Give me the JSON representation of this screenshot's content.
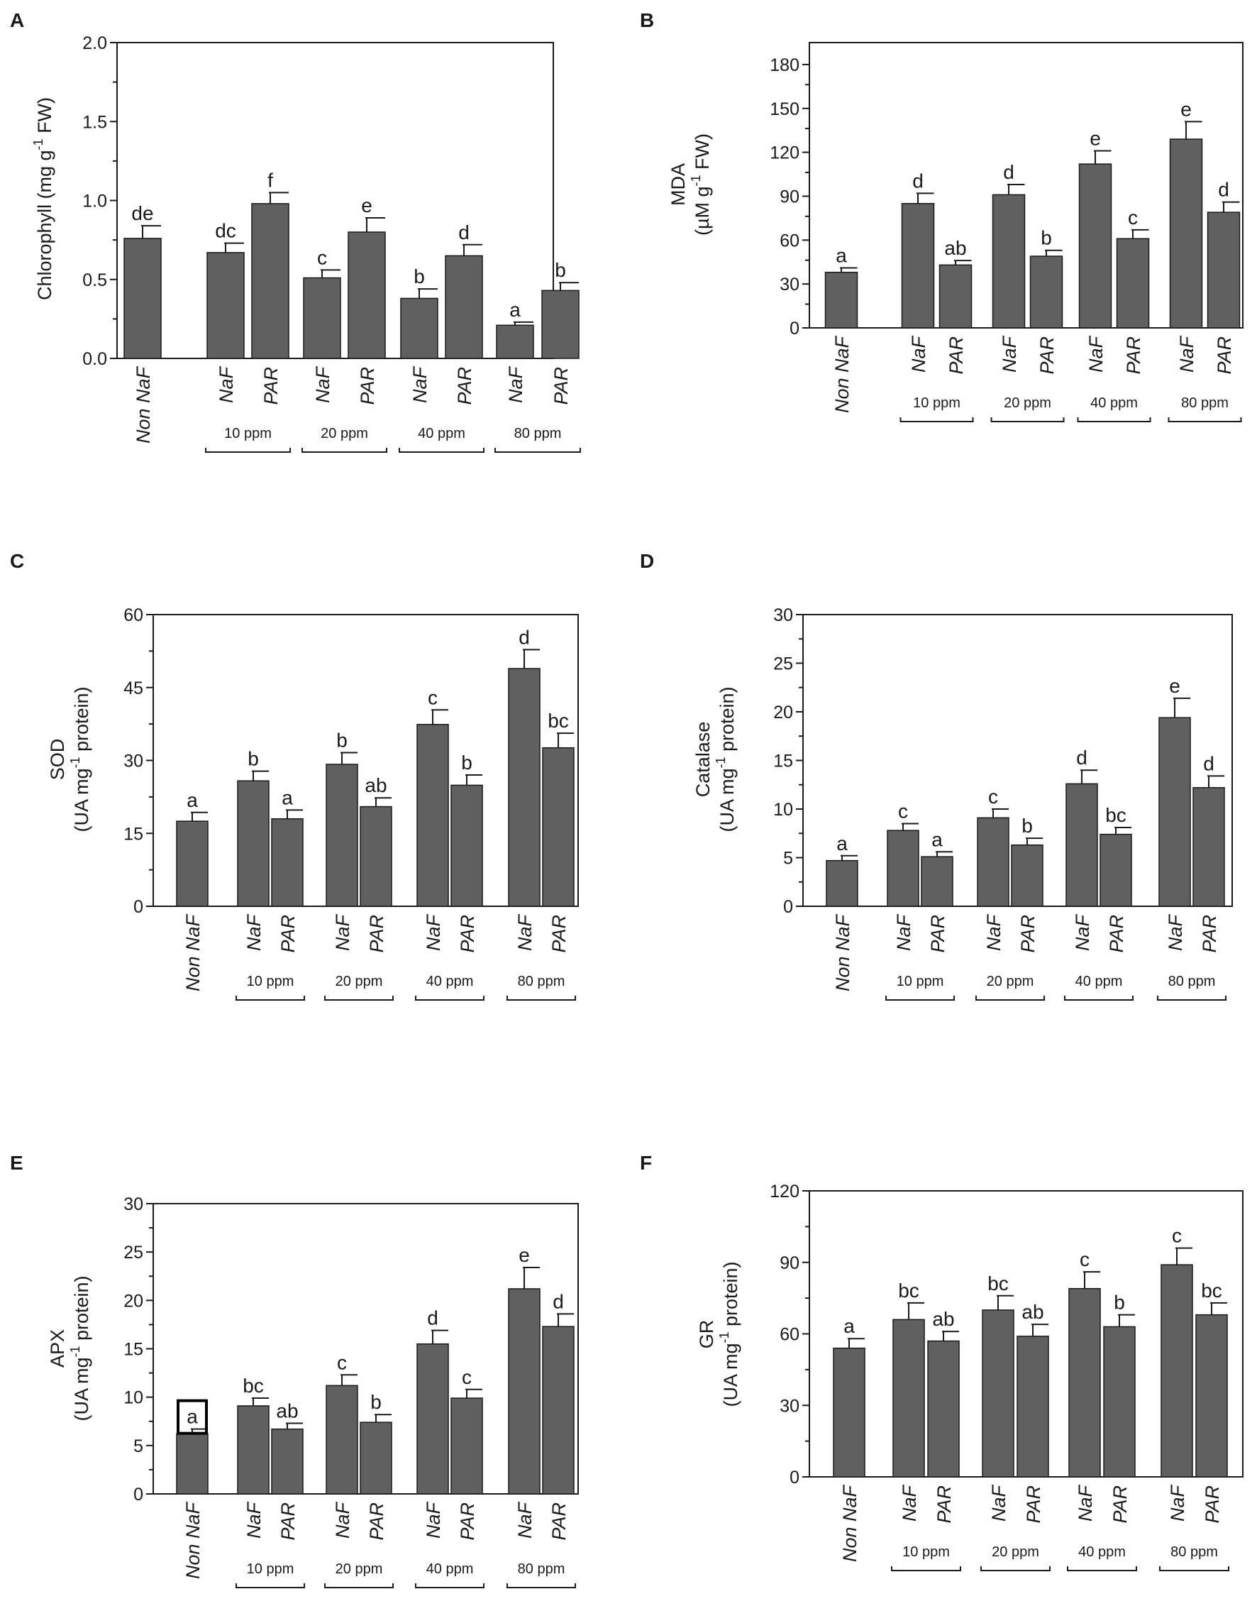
{
  "colors": {
    "bar_fill": "#606060",
    "bar_stroke": "#1a1a1a",
    "axis": "#1a1a1a",
    "highlight_box": "#000000"
  },
  "figure": {
    "non_label": "Non NaF",
    "naf_label": "NaF",
    "par_label": "PAR",
    "dose_labels": [
      "10 ppm",
      "20 ppm",
      "40 ppm",
      "80 ppm"
    ]
  },
  "chart_data": [
    {
      "id": "A",
      "type": "bar",
      "panel_label": "A",
      "ylabel_lines": [
        "Chlorophyll (mg g",
        "-1",
        " FW)"
      ],
      "ylim": [
        0,
        2.0
      ],
      "yticks": [
        0.0,
        0.5,
        1.0,
        1.5,
        2.0
      ],
      "ytick_labels": [
        "0.0",
        "0.5",
        "1.0",
        "1.5",
        "2.0"
      ],
      "categories": [
        "Non NaF",
        "NaF 10 ppm",
        "PAR 10 ppm",
        "NaF 20 ppm",
        "PAR 20 ppm",
        "NaF 40 ppm",
        "PAR 40 ppm",
        "NaF 80 ppm",
        "PAR 80 ppm"
      ],
      "values": [
        0.76,
        0.67,
        0.98,
        0.51,
        0.8,
        0.38,
        0.65,
        0.21,
        0.43
      ],
      "errors": [
        0.08,
        0.06,
        0.07,
        0.05,
        0.09,
        0.06,
        0.07,
        0.02,
        0.05
      ],
      "significance": [
        "de",
        "dc",
        "f",
        "c",
        "e",
        "b",
        "d",
        "a",
        "b"
      ]
    },
    {
      "id": "B",
      "type": "bar",
      "panel_label": "B",
      "ylabel_lines": [
        "MDA",
        "(µM g",
        "-1",
        " FW)"
      ],
      "ylim": [
        0,
        195
      ],
      "yticks": [
        0,
        30,
        60,
        90,
        120,
        150,
        180
      ],
      "ytick_labels": [
        "0",
        "30",
        "60",
        "90",
        "120",
        "150",
        "180"
      ],
      "categories": [
        "Non NaF",
        "NaF 10 ppm",
        "PAR 10 ppm",
        "NaF 20 ppm",
        "PAR 20 ppm",
        "NaF 40 ppm",
        "PAR 40 ppm",
        "NaF 80 ppm",
        "PAR 80 ppm"
      ],
      "values": [
        38,
        85,
        43,
        91,
        49,
        112,
        61,
        129,
        79
      ],
      "errors": [
        3,
        7,
        3,
        7,
        4,
        9,
        6,
        12,
        7
      ],
      "significance": [
        "a",
        "d",
        "ab",
        "d",
        "b",
        "e",
        "c",
        "e",
        "d"
      ]
    },
    {
      "id": "C",
      "type": "bar",
      "panel_label": "C",
      "ylabel_lines": [
        "SOD",
        "(UA mg",
        "-1",
        " protein)"
      ],
      "ylim": [
        0,
        60
      ],
      "yticks": [
        0,
        15,
        30,
        45,
        60
      ],
      "ytick_labels": [
        "0",
        "15",
        "30",
        "45",
        "60"
      ],
      "categories": [
        "Non NaF",
        "NaF 10 ppm",
        "PAR 10 ppm",
        "NaF 20 ppm",
        "PAR 20 ppm",
        "NaF 40 ppm",
        "PAR 40 ppm",
        "NaF 80 ppm",
        "PAR 80 ppm"
      ],
      "values": [
        17.5,
        25.8,
        18.0,
        29.2,
        20.5,
        37.4,
        24.9,
        48.9,
        32.6
      ],
      "errors": [
        1.8,
        2.0,
        1.8,
        2.4,
        1.8,
        3.0,
        2.1,
        3.9,
        3.0
      ],
      "significance": [
        "a",
        "b",
        "a",
        "b",
        "ab",
        "c",
        "b",
        "d",
        "bc"
      ]
    },
    {
      "id": "D",
      "type": "bar",
      "panel_label": "D",
      "ylabel_lines": [
        "Catalase",
        "(UA mg",
        "-1",
        " protein)"
      ],
      "ylim": [
        0,
        30
      ],
      "yticks": [
        0,
        5,
        10,
        15,
        20,
        25,
        30
      ],
      "ytick_labels": [
        "0",
        "5",
        "10",
        "15",
        "20",
        "25",
        "30"
      ],
      "categories": [
        "Non NaF",
        "NaF 10 ppm",
        "PAR 10 ppm",
        "NaF 20 ppm",
        "PAR 20 ppm",
        "NaF 40 ppm",
        "PAR 40 ppm",
        "NaF 80 ppm",
        "PAR 80 ppm"
      ],
      "values": [
        4.7,
        7.8,
        5.1,
        9.1,
        6.3,
        12.6,
        7.4,
        19.4,
        12.2
      ],
      "errors": [
        0.5,
        0.7,
        0.5,
        0.9,
        0.7,
        1.4,
        0.7,
        2.0,
        1.2
      ],
      "significance": [
        "a",
        "c",
        "a",
        "c",
        "b",
        "d",
        "bc",
        "e",
        "d"
      ]
    },
    {
      "id": "E",
      "type": "bar",
      "panel_label": "E",
      "ylabel_lines": [
        "APX",
        "(UA mg",
        "-1",
        " protein)"
      ],
      "ylim": [
        0,
        30
      ],
      "yticks": [
        0,
        5,
        10,
        15,
        20,
        25,
        30
      ],
      "ytick_labels": [
        "0",
        "5",
        "10",
        "15",
        "20",
        "25",
        "30"
      ],
      "categories": [
        "Non NaF",
        "NaF 10 ppm",
        "PAR 10 ppm",
        "NaF 20 ppm",
        "PAR 20 ppm",
        "NaF 40 ppm",
        "PAR 40 ppm",
        "NaF 80 ppm",
        "PAR 80 ppm"
      ],
      "values": [
        6.2,
        9.1,
        6.7,
        11.2,
        7.4,
        15.5,
        9.9,
        21.2,
        17.3
      ],
      "errors": [
        0.5,
        0.8,
        0.6,
        1.1,
        0.8,
        1.4,
        0.9,
        2.2,
        1.3
      ],
      "significance": [
        "a",
        "bc",
        "ab",
        "c",
        "b",
        "d",
        "c",
        "e",
        "d"
      ],
      "highlighted_index": 0
    },
    {
      "id": "F",
      "type": "bar",
      "panel_label": "F",
      "ylabel_lines": [
        "GR",
        "(UA mg",
        "-1",
        " protein)"
      ],
      "ylim": [
        0,
        120
      ],
      "yticks": [
        0,
        30,
        60,
        90,
        120
      ],
      "ytick_labels": [
        "0",
        "30",
        "60",
        "90",
        "120"
      ],
      "categories": [
        "Non NaF",
        "NaF 10 ppm",
        "PAR 10 ppm",
        "NaF 20 ppm",
        "PAR 20 ppm",
        "NaF 40 ppm",
        "PAR 40 ppm",
        "NaF 80 ppm",
        "PAR 80 ppm"
      ],
      "values": [
        54,
        66,
        57,
        70,
        59,
        79,
        63,
        89,
        68
      ],
      "errors": [
        4,
        7,
        4,
        6,
        5,
        7,
        5,
        7,
        5
      ],
      "significance": [
        "a",
        "bc",
        "ab",
        "bc",
        "ab",
        "c",
        "b",
        "c",
        "bc"
      ]
    }
  ]
}
